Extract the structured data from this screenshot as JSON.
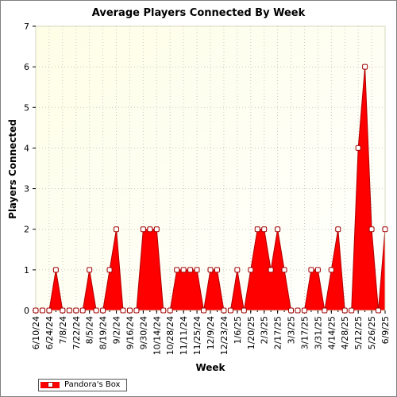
{
  "chart_data": {
    "type": "area",
    "title": "Average Players Connected By Week",
    "xlabel": "Week",
    "ylabel": "Players Connected",
    "ylim": [
      0,
      7
    ],
    "yticks": [
      0,
      1,
      2,
      3,
      4,
      5,
      6,
      7
    ],
    "grid": true,
    "legend_position": "bottom-left",
    "x_tick_labels": [
      "6/10/24",
      "6/24/24",
      "7/8/24",
      "7/22/24",
      "8/5/24",
      "8/19/24",
      "9/2/24",
      "9/16/24",
      "9/30/24",
      "10/14/24",
      "10/28/24",
      "11/11/24",
      "11/25/24",
      "12/9/24",
      "12/23/24",
      "1/6/25",
      "1/20/25",
      "2/3/25",
      "2/17/25",
      "3/3/25",
      "3/17/25",
      "3/31/25",
      "4/14/25",
      "4/28/25",
      "5/12/25",
      "5/26/25",
      "6/9/25"
    ],
    "x": [
      "6/10/24",
      "6/17/24",
      "6/24/24",
      "7/1/24",
      "7/8/24",
      "7/15/24",
      "7/22/24",
      "7/29/24",
      "8/5/24",
      "8/12/24",
      "8/19/24",
      "8/26/24",
      "9/2/24",
      "9/9/24",
      "9/16/24",
      "9/23/24",
      "9/30/24",
      "10/7/24",
      "10/14/24",
      "10/21/24",
      "10/28/24",
      "11/4/24",
      "11/11/24",
      "11/18/24",
      "11/25/24",
      "12/2/24",
      "12/9/24",
      "12/16/24",
      "12/23/24",
      "12/30/24",
      "1/6/25",
      "1/13/25",
      "1/20/25",
      "1/27/25",
      "2/3/25",
      "2/10/25",
      "2/17/25",
      "2/24/25",
      "3/3/25",
      "3/10/25",
      "3/17/25",
      "3/24/25",
      "3/31/25",
      "4/7/25",
      "4/14/25",
      "4/21/25",
      "4/28/25",
      "5/5/25",
      "5/12/25",
      "5/19/25",
      "5/26/25",
      "6/2/25",
      "6/9/25"
    ],
    "series": [
      {
        "name": "Pandora's Box",
        "color": "#ff0000",
        "values": [
          0,
          0,
          0,
          1,
          0,
          0,
          0,
          0,
          1,
          0,
          0,
          1,
          2,
          0,
          0,
          0,
          2,
          2,
          2,
          0,
          0,
          1,
          1,
          1,
          1,
          0,
          1,
          1,
          0,
          0,
          1,
          0,
          1,
          2,
          2,
          1,
          2,
          1,
          0,
          0,
          0,
          1,
          1,
          0,
          1,
          2,
          0,
          0,
          4,
          6,
          2,
          0,
          2
        ]
      }
    ]
  }
}
